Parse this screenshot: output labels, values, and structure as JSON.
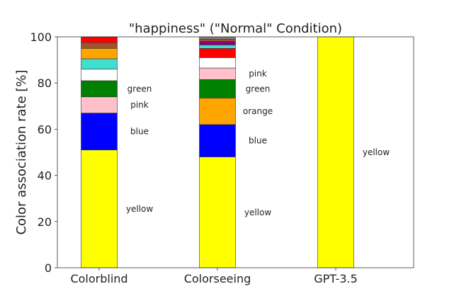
{
  "chart_data": {
    "type": "bar",
    "stacked": true,
    "title": "\"happiness\" (\"Normal\" Condition)",
    "xlabel": "",
    "ylabel": "Color association rate [%]",
    "ylim": [
      0,
      100
    ],
    "yticks": [
      "0",
      "20",
      "40",
      "60",
      "80",
      "100"
    ],
    "grid": false,
    "categories": [
      "Colorblind",
      "Colorseeing",
      "GPT-3.5"
    ],
    "bars": [
      {
        "category": "Colorblind",
        "segments": [
          {
            "color": "#ffff00",
            "value": 51,
            "label": "yellow"
          },
          {
            "color": "#0000ff",
            "value": 16,
            "label": "blue"
          },
          {
            "color": "#ffc0cb",
            "value": 7,
            "label": "pink"
          },
          {
            "color": "#008000",
            "value": 7,
            "label": "green"
          },
          {
            "color": "#ffffff",
            "value": 5,
            "label": ""
          },
          {
            "color": "#40e0d0",
            "value": 4.5,
            "label": ""
          },
          {
            "color": "#ffa500",
            "value": 4.5,
            "label": ""
          },
          {
            "color": "#a0522d",
            "value": 2.5,
            "label": ""
          },
          {
            "color": "#ff0000",
            "value": 2.5,
            "label": ""
          }
        ]
      },
      {
        "category": "Colorseeing",
        "segments": [
          {
            "color": "#ffff00",
            "value": 48,
            "label": "yellow"
          },
          {
            "color": "#0000ff",
            "value": 14,
            "label": "blue"
          },
          {
            "color": "#ffa500",
            "value": 11.5,
            "label": "orange"
          },
          {
            "color": "#008000",
            "value": 8,
            "label": "green"
          },
          {
            "color": "#ffc0cb",
            "value": 5,
            "label": "pink"
          },
          {
            "color": "#ffffff",
            "value": 4.5,
            "label": ""
          },
          {
            "color": "#ff0000",
            "value": 4,
            "label": ""
          },
          {
            "color": "#40e0d0",
            "value": 1.5,
            "label": ""
          },
          {
            "color": "#800080",
            "value": 1.5,
            "label": ""
          },
          {
            "color": "#a0522d",
            "value": 1,
            "label": ""
          },
          {
            "color": "#808080",
            "value": 1,
            "label": ""
          }
        ]
      },
      {
        "category": "GPT-3.5",
        "segments": [
          {
            "color": "#ffff00",
            "value": 100,
            "label": "yellow"
          }
        ]
      }
    ]
  }
}
